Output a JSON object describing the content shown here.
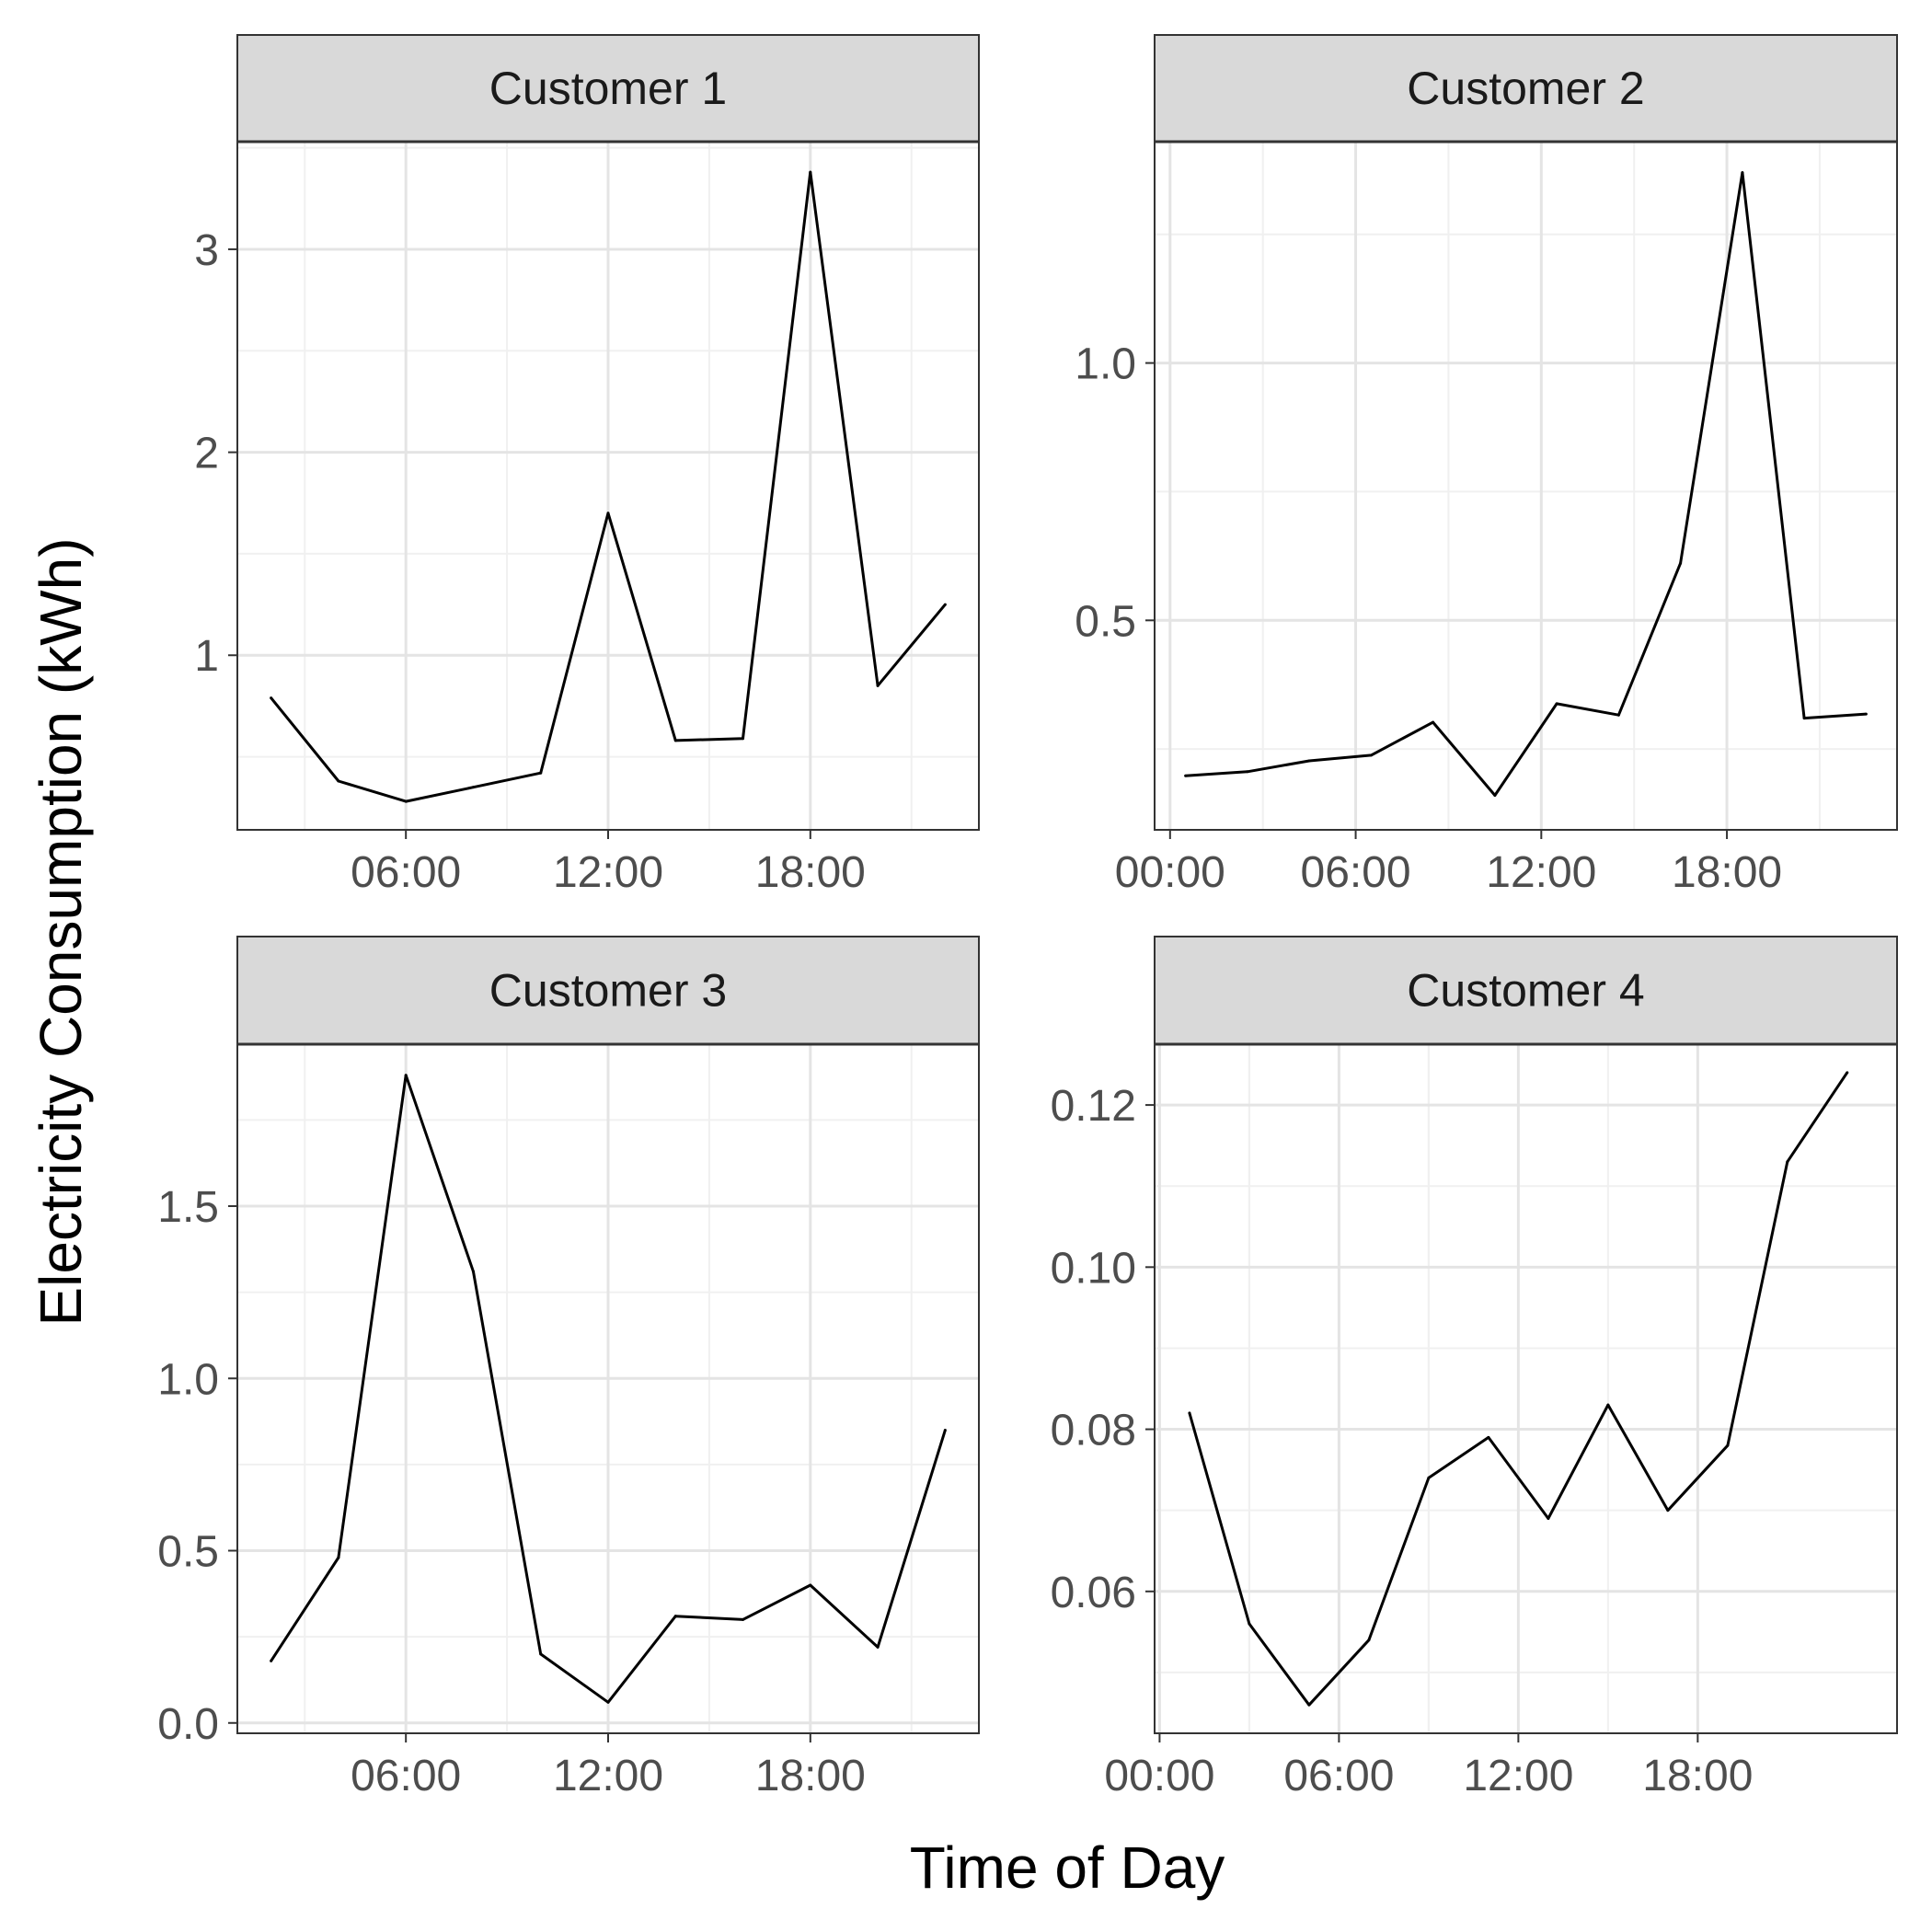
{
  "figure": {
    "xlabel": "Time of Day",
    "ylabel": "Electricity Consumption (kWh)"
  },
  "chart_data": [
    {
      "type": "line",
      "title": "Customer 1",
      "x": [
        "02:00",
        "04:00",
        "06:00",
        "08:00",
        "10:00",
        "12:00",
        "14:00",
        "16:00",
        "18:00",
        "20:00",
        "22:00"
      ],
      "y": [
        0.79,
        0.38,
        0.28,
        0.35,
        0.42,
        1.7,
        0.58,
        0.59,
        3.38,
        0.85,
        1.25
      ],
      "xticks": [
        "06:00",
        "12:00",
        "18:00"
      ],
      "yticks": [
        1,
        2,
        3
      ],
      "ytick_labels": [
        "1",
        "2",
        "3"
      ],
      "xlim": [
        "01:00",
        "23:00"
      ],
      "ylim": [
        0.14,
        3.53
      ],
      "grid": true
    },
    {
      "type": "line",
      "title": "Customer 2",
      "x": [
        "00:30",
        "02:30",
        "04:30",
        "06:30",
        "08:30",
        "10:30",
        "12:30",
        "14:30",
        "16:30",
        "18:30",
        "20:30",
        "22:30"
      ],
      "y": [
        0.198,
        0.206,
        0.227,
        0.238,
        0.302,
        0.16,
        0.338,
        0.316,
        0.611,
        1.37,
        0.31,
        0.318
      ],
      "xticks": [
        "00:00",
        "06:00",
        "12:00",
        "18:00"
      ],
      "yticks": [
        0.5,
        1.0
      ],
      "ytick_labels": [
        "0.5",
        "1.0"
      ],
      "xlim": [
        "-00:30",
        "23:30"
      ],
      "ylim": [
        0.093,
        1.43
      ],
      "grid": true
    },
    {
      "type": "line",
      "title": "Customer 3",
      "x": [
        "02:00",
        "04:00",
        "06:00",
        "08:00",
        "10:00",
        "12:00",
        "14:00",
        "16:00",
        "18:00",
        "20:00",
        "22:00"
      ],
      "y": [
        0.18,
        0.48,
        1.88,
        1.31,
        0.2,
        0.06,
        0.31,
        0.3,
        0.4,
        0.22,
        0.85
      ],
      "xticks": [
        "06:00",
        "12:00",
        "18:00"
      ],
      "yticks": [
        0.0,
        0.5,
        1.0,
        1.5
      ],
      "ytick_labels": [
        "0.0",
        "0.5",
        "1.0",
        "1.5"
      ],
      "xlim": [
        "01:00",
        "23:00"
      ],
      "ylim": [
        -0.03,
        1.97
      ],
      "grid": true
    },
    {
      "type": "line",
      "title": "Customer 4",
      "x": [
        "01:00",
        "03:00",
        "05:00",
        "07:00",
        "09:00",
        "11:00",
        "13:00",
        "15:00",
        "17:00",
        "19:00",
        "21:00",
        "23:00"
      ],
      "y": [
        0.082,
        0.056,
        0.046,
        0.054,
        0.074,
        0.079,
        0.069,
        0.083,
        0.07,
        0.078,
        0.113,
        0.124
      ],
      "xticks": [
        "06:00",
        "12:00",
        "18:00",
        "00:00"
      ],
      "yticks": [
        0.06,
        0.08,
        0.1,
        0.12
      ],
      "ytick_labels": [
        "0.06",
        "0.08",
        "0.10",
        "0.12"
      ],
      "xlim": [
        "-00:10",
        "24:40"
      ],
      "ylim": [
        0.0425,
        0.1275
      ],
      "grid": true
    }
  ]
}
